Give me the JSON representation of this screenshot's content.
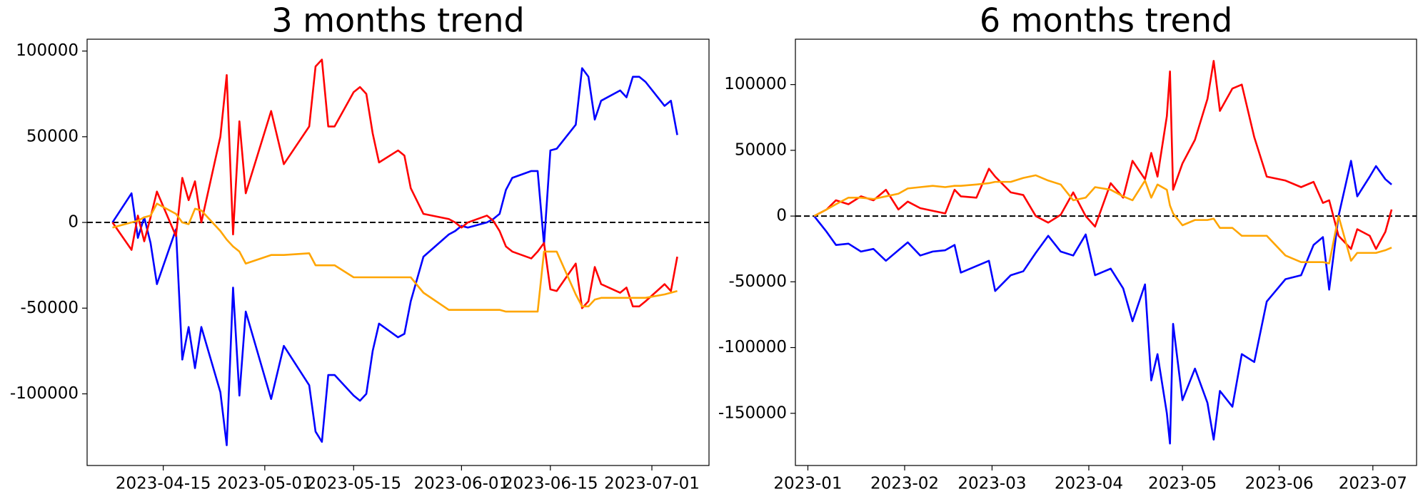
{
  "chart_data": [
    {
      "type": "line",
      "title": "3 months trend",
      "x": [
        "2023-04-07",
        "2023-04-10",
        "2023-04-11",
        "2023-04-12",
        "2023-04-13",
        "2023-04-14",
        "2023-04-17",
        "2023-04-18",
        "2023-04-19",
        "2023-04-20",
        "2023-04-21",
        "2023-04-24",
        "2023-04-25",
        "2023-04-26",
        "2023-04-27",
        "2023-04-28",
        "2023-05-02",
        "2023-05-04",
        "2023-05-08",
        "2023-05-09",
        "2023-05-10",
        "2023-05-11",
        "2023-05-12",
        "2023-05-15",
        "2023-05-16",
        "2023-05-17",
        "2023-05-18",
        "2023-05-19",
        "2023-05-22",
        "2023-05-23",
        "2023-05-24",
        "2023-05-26",
        "2023-05-30",
        "2023-05-31",
        "2023-06-01",
        "2023-06-02",
        "2023-06-05",
        "2023-06-06",
        "2023-06-07",
        "2023-06-08",
        "2023-06-09",
        "2023-06-12",
        "2023-06-13",
        "2023-06-14",
        "2023-06-15",
        "2023-06-16",
        "2023-06-19",
        "2023-06-20",
        "2023-06-21",
        "2023-06-22",
        "2023-06-23",
        "2023-06-26",
        "2023-06-27",
        "2023-06-28",
        "2023-06-29",
        "2023-06-30",
        "2023-07-03",
        "2023-07-04",
        "2023-07-05"
      ],
      "series": [
        {
          "color": "#0000ff",
          "values": [
            0,
            17000,
            -9000,
            3000,
            -12000,
            -36000,
            -4000,
            -80000,
            -61000,
            -85000,
            -61000,
            -99000,
            -130000,
            -38000,
            -101000,
            -52000,
            -103000,
            -72000,
            -95000,
            -122000,
            -128000,
            -89000,
            -89000,
            -101000,
            -104000,
            -100000,
            -75000,
            -59000,
            -67000,
            -65000,
            -46000,
            -20000,
            -7000,
            -5000,
            -2000,
            -3000,
            0,
            2000,
            5000,
            19000,
            26000,
            30000,
            30000,
            -13000,
            42000,
            43000,
            57000,
            90000,
            85000,
            60000,
            71000,
            77000,
            73000,
            85000,
            85000,
            82000,
            68000,
            71000,
            51000
          ]
        },
        {
          "color": "#ff0000",
          "values": [
            0,
            -16000,
            4000,
            -11000,
            3000,
            18000,
            -8000,
            26000,
            13000,
            24000,
            0,
            50000,
            86000,
            -7000,
            59000,
            17000,
            65000,
            34000,
            56000,
            91000,
            95000,
            56000,
            56000,
            76000,
            79000,
            75000,
            52000,
            35000,
            42000,
            39000,
            20000,
            5000,
            2000,
            0,
            -3000,
            0,
            4000,
            1000,
            -5000,
            -14000,
            -17000,
            -21000,
            -17000,
            -12000,
            -39000,
            -40000,
            -24000,
            -50000,
            -46000,
            -26000,
            -36000,
            -41000,
            -38000,
            -49000,
            -49000,
            -46000,
            -36000,
            -40000,
            -20000
          ]
        },
        {
          "color": "#ffa500",
          "values": [
            -3000,
            0,
            1000,
            3000,
            4000,
            11000,
            5000,
            0,
            -1000,
            8000,
            7000,
            -5000,
            -10000,
            -14000,
            -17000,
            -24000,
            -19000,
            -19000,
            -18000,
            -25000,
            -25000,
            -25000,
            -25000,
            -32000,
            -32000,
            -32000,
            -32000,
            -32000,
            -32000,
            -32000,
            -32000,
            -41000,
            -51000,
            -51000,
            -51000,
            -51000,
            -51000,
            -51000,
            -51000,
            -52000,
            -52000,
            -52000,
            -52000,
            -17000,
            -17000,
            -17000,
            -42000,
            -49000,
            -49000,
            -45000,
            -44000,
            -44000,
            -44000,
            -44000,
            -44000,
            -44000,
            -42000,
            -41000,
            -40000
          ]
        }
      ],
      "xlim": [
        "2023-04-03",
        "2023-07-10"
      ],
      "xticks": [
        "2023-04-15",
        "2023-05-01",
        "2023-05-15",
        "2023-06-01",
        "2023-06-15",
        "2023-07-01"
      ],
      "ylim": [
        -141800,
        106900
      ],
      "yticks": [
        -100000,
        -50000,
        0,
        50000,
        100000
      ],
      "hlines": [
        {
          "y": 0,
          "color": "#000000",
          "style": "dashed"
        }
      ]
    },
    {
      "type": "line",
      "title": "6 months trend",
      "x": [
        "2023-01-03",
        "2023-01-07",
        "2023-01-10",
        "2023-01-14",
        "2023-01-18",
        "2023-01-22",
        "2023-01-26",
        "2023-01-30",
        "2023-02-02",
        "2023-02-06",
        "2023-02-10",
        "2023-02-14",
        "2023-02-17",
        "2023-02-19",
        "2023-02-24",
        "2023-02-28",
        "2023-03-02",
        "2023-03-07",
        "2023-03-11",
        "2023-03-15",
        "2023-03-19",
        "2023-03-23",
        "2023-03-27",
        "2023-03-31",
        "2023-04-03",
        "2023-04-08",
        "2023-04-12",
        "2023-04-15",
        "2023-04-19",
        "2023-04-21",
        "2023-04-23",
        "2023-04-26",
        "2023-04-27",
        "2023-04-28",
        "2023-05-01",
        "2023-05-05",
        "2023-05-09",
        "2023-05-11",
        "2023-05-13",
        "2023-05-17",
        "2023-05-20",
        "2023-05-24",
        "2023-05-28",
        "2023-06-03",
        "2023-06-08",
        "2023-06-12",
        "2023-06-15",
        "2023-06-17",
        "2023-06-20",
        "2023-06-24",
        "2023-06-26",
        "2023-06-30",
        "2023-07-02",
        "2023-07-05",
        "2023-07-07"
      ],
      "series": [
        {
          "color": "#0000ff",
          "values": [
            0,
            -12000,
            -22000,
            -21000,
            -27000,
            -25000,
            -34000,
            -26000,
            -20000,
            -30000,
            -27000,
            -26000,
            -22000,
            -43000,
            -38000,
            -34000,
            -57000,
            -45000,
            -42000,
            -28000,
            -15000,
            -27000,
            -30000,
            -14000,
            -45000,
            -40000,
            -55000,
            -80000,
            -52000,
            -125000,
            -105000,
            -150000,
            -173000,
            -82000,
            -140000,
            -116000,
            -142000,
            -170000,
            -133000,
            -145000,
            -105000,
            -111000,
            -65000,
            -48000,
            -45000,
            -22000,
            -16000,
            -56000,
            0,
            42000,
            15000,
            30000,
            38000,
            28000,
            24000
          ]
        },
        {
          "color": "#ff0000",
          "values": [
            0,
            5000,
            12000,
            9000,
            15000,
            12000,
            20000,
            5000,
            11000,
            6000,
            4000,
            2000,
            20000,
            15000,
            14000,
            36000,
            30000,
            18000,
            16000,
            0,
            -5000,
            1000,
            18000,
            0,
            -8000,
            25000,
            14000,
            42000,
            28000,
            48000,
            30000,
            76000,
            110000,
            20000,
            40000,
            58000,
            89000,
            118000,
            80000,
            97000,
            100000,
            60000,
            30000,
            27000,
            22000,
            26000,
            10000,
            12000,
            -15000,
            -25000,
            -10000,
            -15000,
            -25000,
            -12000,
            5000
          ]
        },
        {
          "color": "#ffa500",
          "values": [
            0,
            5000,
            9000,
            14000,
            14000,
            13000,
            15000,
            17000,
            21000,
            22000,
            23000,
            22000,
            23000,
            23000,
            24000,
            25000,
            26000,
            26000,
            29000,
            31000,
            27000,
            24000,
            12000,
            14000,
            22000,
            20000,
            15000,
            12000,
            27000,
            14000,
            24000,
            20000,
            8000,
            2000,
            -7000,
            -3000,
            -3000,
            -2000,
            -9000,
            -9000,
            -15000,
            -15000,
            -15000,
            -30000,
            -35000,
            -35000,
            -35000,
            -36000,
            0,
            -34000,
            -28000,
            -28000,
            -28000,
            -26000,
            -24000
          ]
        }
      ],
      "xlim": [
        "2022-12-28",
        "2023-07-15"
      ],
      "xticks": [
        {
          "value": "2023-01-01",
          "label": "2023-01"
        },
        {
          "value": "2023-02-01",
          "label": "2023-02"
        },
        {
          "value": "2023-03-01",
          "label": "2023-03"
        },
        {
          "value": "2023-04-01",
          "label": "2023-04"
        },
        {
          "value": "2023-05-01",
          "label": "2023-05"
        },
        {
          "value": "2023-06-01",
          "label": "2023-06"
        },
        {
          "value": "2023-07-01",
          "label": "2023-07"
        }
      ],
      "ylim": [
        -189700,
        134500
      ],
      "yticks": [
        -150000,
        -100000,
        -50000,
        0,
        50000,
        100000
      ],
      "hlines": [
        {
          "y": 0,
          "color": "#000000",
          "style": "dashed"
        }
      ]
    }
  ]
}
